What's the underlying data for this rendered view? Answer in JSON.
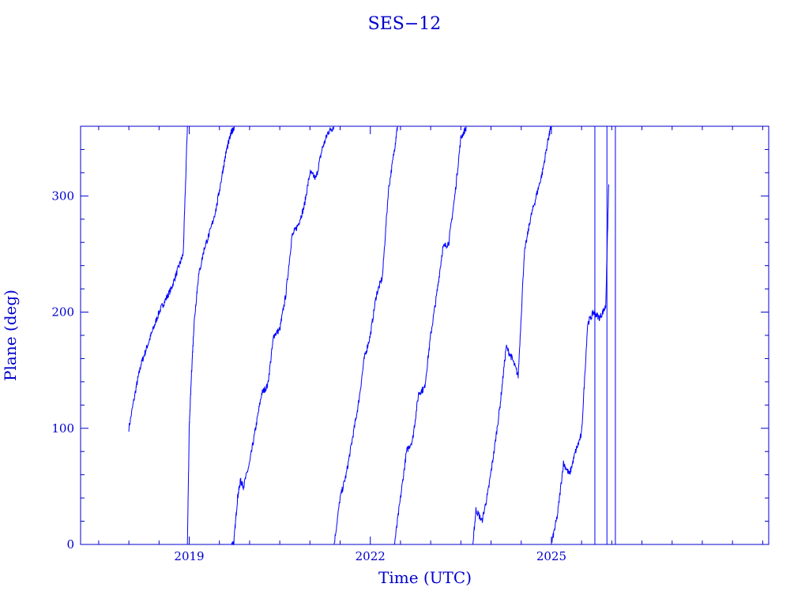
{
  "chart_data": {
    "type": "line",
    "title": "SES−12",
    "xlabel": "Time (UTC)",
    "ylabel": "Plane (deg)",
    "xlim": [
      2017.2,
      2028.6
    ],
    "ylim": [
      0,
      360
    ],
    "x_ticks": [
      2019,
      2022,
      2025
    ],
    "y_ticks": [
      0,
      100,
      200,
      300
    ],
    "line_color": "#0000ff",
    "axis_color": "#0000cc",
    "series": [
      {
        "x": [
          2018.97,
          2019.0,
          2019.04,
          2019.08,
          2019.15,
          2019.25,
          2019.35,
          2019.45,
          2019.55,
          2019.62,
          2019.7,
          2019.75
        ],
        "y": [
          0,
          100,
          150,
          190,
          230,
          255,
          270,
          290,
          320,
          340,
          355,
          360
        ]
      }
    ],
    "segments": [
      {
        "x": [
          2018.0,
          2018.12,
          2018.2,
          2018.3,
          2018.4,
          2018.5,
          2018.6,
          2018.7,
          2018.8,
          2018.9,
          2018.97
        ],
        "y": [
          100,
          135,
          155,
          170,
          185,
          200,
          210,
          220,
          235,
          250,
          360
        ]
      },
      {
        "x": [
          2019.7,
          2019.74,
          2019.8,
          2019.85,
          2019.9,
          2020.0,
          2020.1,
          2020.2,
          2020.3,
          2020.4,
          2020.5,
          2020.6,
          2020.7,
          2020.8,
          2020.9,
          2021.0,
          2021.1,
          2021.2,
          2021.3,
          2021.4
        ],
        "y": [
          0,
          2,
          40,
          55,
          50,
          70,
          100,
          130,
          137,
          180,
          185,
          215,
          265,
          275,
          290,
          320,
          315,
          340,
          355,
          360
        ]
      },
      {
        "x": [
          2021.4,
          2021.5,
          2021.6,
          2021.7,
          2021.8,
          2021.9,
          2022.0,
          2022.1,
          2022.2,
          2022.3,
          2022.4,
          2022.45
        ],
        "y": [
          0,
          40,
          60,
          90,
          120,
          160,
          180,
          215,
          230,
          305,
          340,
          360
        ]
      },
      {
        "x": [
          2022.4,
          2022.5,
          2022.6,
          2022.7,
          2022.8,
          2022.9,
          2023.0,
          2023.1,
          2023.2,
          2023.3,
          2023.4,
          2023.5,
          2023.6
        ],
        "y": [
          0,
          40,
          80,
          90,
          130,
          135,
          180,
          215,
          255,
          260,
          300,
          350,
          360
        ]
      },
      {
        "x": [
          2023.7,
          2023.75,
          2023.85,
          2023.95,
          2024.05,
          2024.15,
          2024.25,
          2024.35,
          2024.45,
          2024.55,
          2024.65,
          2024.75,
          2024.85,
          2024.95,
          2025.0
        ],
        "y": [
          0,
          30,
          20,
          45,
          80,
          120,
          170,
          160,
          145,
          250,
          280,
          300,
          320,
          350,
          360
        ]
      },
      {
        "x": [
          2025.0,
          2025.1,
          2025.2,
          2025.3,
          2025.4,
          2025.5,
          2025.6,
          2025.7,
          2025.8,
          2025.9,
          2025.95
        ],
        "y": [
          0,
          25,
          70,
          60,
          80,
          95,
          190,
          200,
          195,
          205,
          310
        ]
      }
    ]
  }
}
